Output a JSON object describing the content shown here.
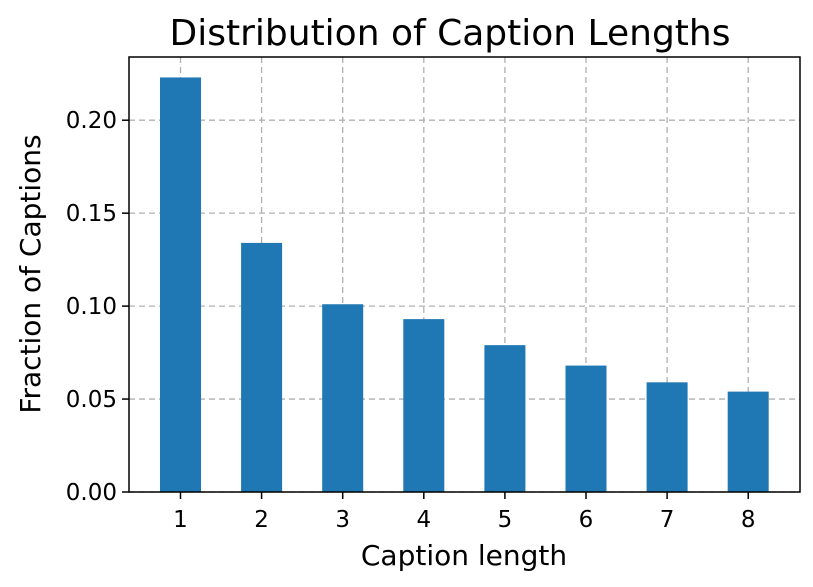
{
  "chart_data": {
    "type": "bar",
    "title": "Distribution of Caption Lengths",
    "xlabel": "Caption length",
    "ylabel": "Fraction of Captions",
    "categories": [
      "1",
      "2",
      "3",
      "4",
      "5",
      "6",
      "7",
      "8"
    ],
    "values": [
      0.223,
      0.134,
      0.101,
      0.093,
      0.079,
      0.068,
      0.059,
      0.054
    ],
    "yticks": [
      "0.00",
      "0.05",
      "0.10",
      "0.15",
      "0.20"
    ],
    "ylim": [
      0,
      0.234
    ],
    "grid": true,
    "bar_color": "#1f77b4"
  }
}
